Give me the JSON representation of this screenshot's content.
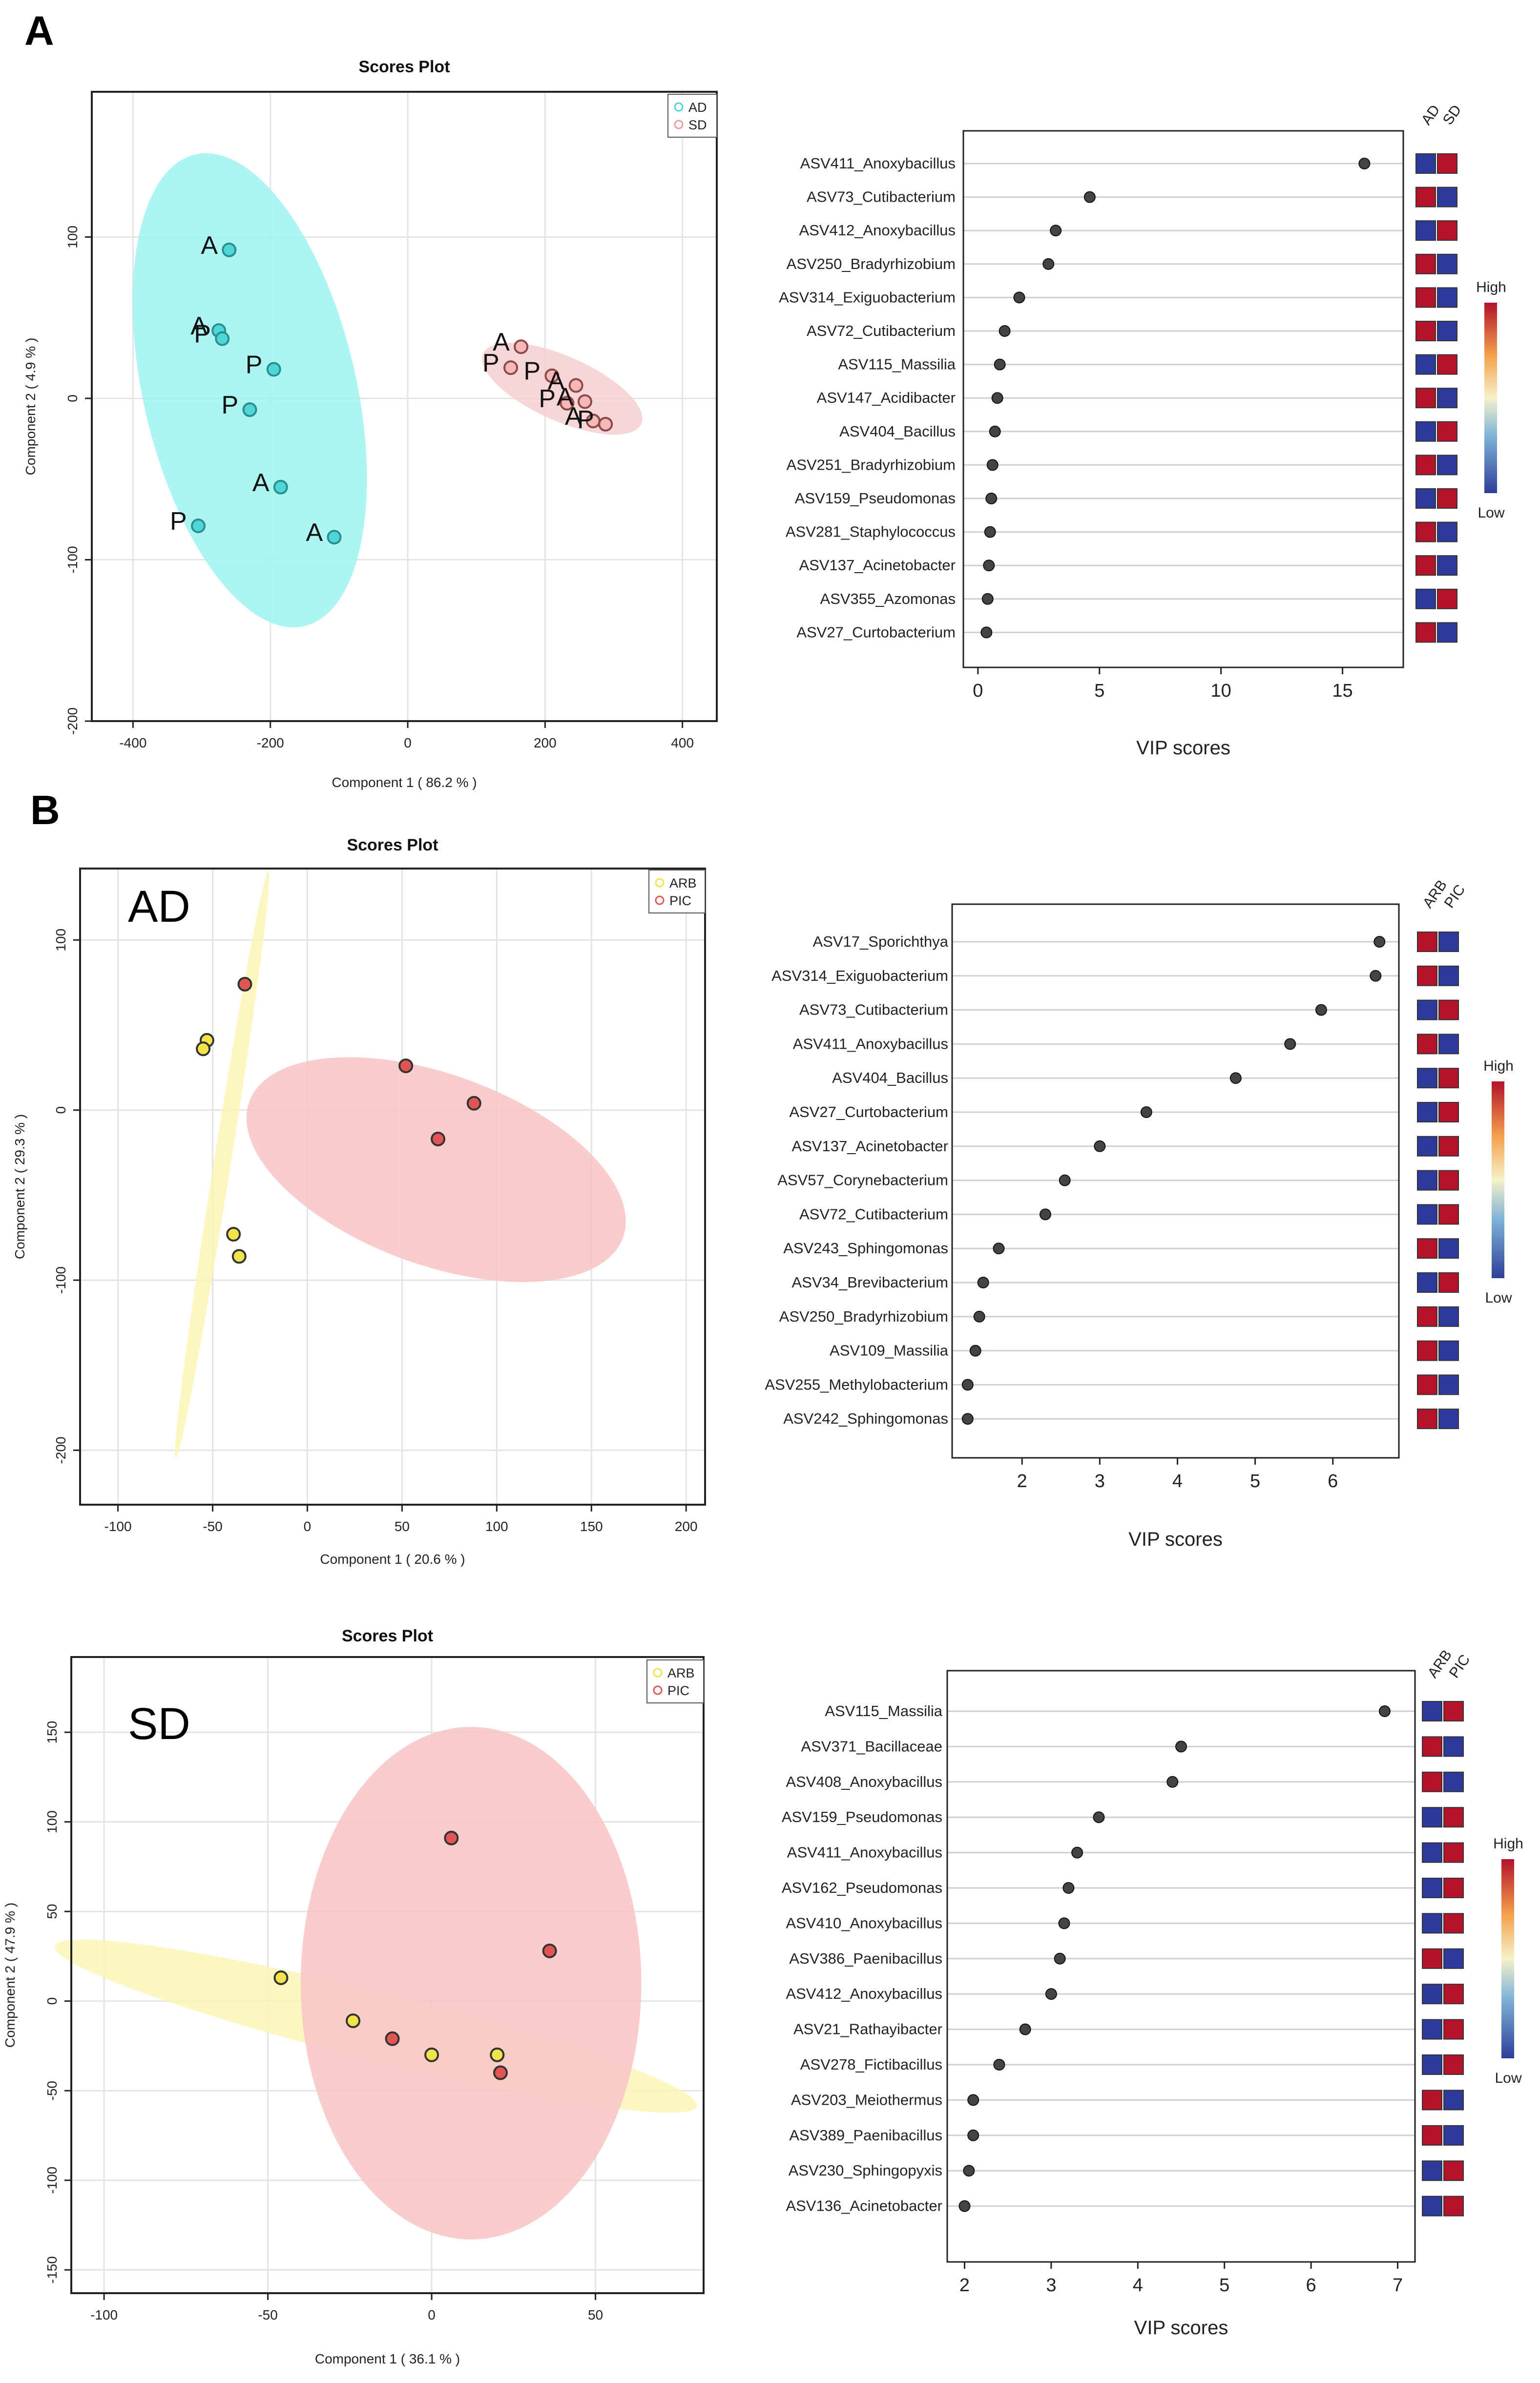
{
  "panel_labels": {
    "a": "A",
    "b": "B"
  },
  "chart_data": [
    {
      "id": "A_scores",
      "type": "scatter",
      "title": "Scores Plot",
      "xlabel": "Component 1 ( 86.2 % )",
      "ylabel": "Component 2 ( 4.9 % )",
      "xlim": [
        -460,
        450
      ],
      "ylim": [
        -200,
        190
      ],
      "xticks": [
        -400,
        -200,
        0,
        200,
        400
      ],
      "yticks": [
        -200,
        -100,
        0,
        100
      ],
      "grid": true,
      "legend_position": "top-right",
      "legend": [
        {
          "name": "AD",
          "color": "#4fd6d6"
        },
        {
          "name": "SD",
          "color": "#f09a9a"
        }
      ],
      "inner_label": "",
      "ellipses": [
        {
          "group": "AD",
          "cx": -230,
          "cy": 5,
          "rx": 155,
          "ry": 150,
          "angle": -13,
          "color": "#9ff3f1"
        },
        {
          "group": "SD",
          "cx": 225,
          "cy": 6,
          "rx": 126,
          "ry": 20,
          "angle": 24,
          "color": "#f6cfd1"
        }
      ],
      "points": [
        {
          "x": -260,
          "y": 92,
          "label": "A",
          "group": "AD"
        },
        {
          "x": -275,
          "y": 42,
          "label": "A",
          "group": "AD"
        },
        {
          "x": -270,
          "y": 37,
          "label": "P",
          "group": "AD"
        },
        {
          "x": -195,
          "y": 18,
          "label": "P",
          "group": "AD"
        },
        {
          "x": -230,
          "y": -7,
          "label": "P",
          "group": "AD"
        },
        {
          "x": -185,
          "y": -55,
          "label": "A",
          "group": "AD"
        },
        {
          "x": -305,
          "y": -79,
          "label": "P",
          "group": "AD"
        },
        {
          "x": -107,
          "y": -86,
          "label": "A",
          "group": "AD"
        },
        {
          "x": 165,
          "y": 32,
          "label": "A",
          "group": "SD"
        },
        {
          "x": 150,
          "y": 19,
          "label": "P",
          "group": "SD"
        },
        {
          "x": 210,
          "y": 14,
          "label": "P",
          "group": "SD"
        },
        {
          "x": 245,
          "y": 8,
          "label": "A",
          "group": "SD"
        },
        {
          "x": 232,
          "y": -3,
          "label": "P",
          "group": "SD"
        },
        {
          "x": 258,
          "y": -2,
          "label": "A",
          "group": "SD"
        },
        {
          "x": 270,
          "y": -14,
          "label": "A",
          "group": "SD"
        },
        {
          "x": 288,
          "y": -16,
          "label": "P",
          "group": "SD"
        }
      ]
    },
    {
      "id": "A_vip",
      "type": "scatter",
      "xlabel": "VIP scores",
      "xlim": [
        -0.6,
        17.5
      ],
      "xticks": [
        0,
        5,
        10,
        15
      ],
      "heat_headers": [
        "AD",
        "SD"
      ],
      "heat_legend": {
        "high": "High",
        "low": "Low"
      },
      "features": [
        "ASV411_Anoxybacillus",
        "ASV73_Cutibacterium",
        "ASV412_Anoxybacillus",
        "ASV250_Bradyrhizobium",
        "ASV314_Exiguobacterium",
        "ASV72_Cutibacterium",
        "ASV115_Massilia",
        "ASV147_Acidibacter",
        "ASV404_Bacillus",
        "ASV251_Bradyrhizobium",
        "ASV159_Pseudomonas",
        "ASV281_Staphylococcus",
        "ASV137_Acinetobacter",
        "ASV355_Azomonas",
        "ASV27_Curtobacterium"
      ],
      "values": [
        15.9,
        4.6,
        3.2,
        2.9,
        1.7,
        1.1,
        0.9,
        0.8,
        0.7,
        0.6,
        0.55,
        0.5,
        0.45,
        0.4,
        0.35
      ],
      "heat": [
        [
          "blue",
          "red"
        ],
        [
          "red",
          "blue"
        ],
        [
          "blue",
          "red"
        ],
        [
          "red",
          "blue"
        ],
        [
          "red",
          "blue"
        ],
        [
          "red",
          "blue"
        ],
        [
          "blue",
          "red"
        ],
        [
          "red",
          "blue"
        ],
        [
          "blue",
          "red"
        ],
        [
          "red",
          "blue"
        ],
        [
          "blue",
          "red"
        ],
        [
          "red",
          "blue"
        ],
        [
          "red",
          "blue"
        ],
        [
          "blue",
          "red"
        ],
        [
          "red",
          "blue"
        ]
      ]
    },
    {
      "id": "B_AD_scores",
      "type": "scatter",
      "title": "Scores Plot",
      "xlabel": "Component 1 ( 20.6 % )",
      "ylabel": "Component 2 ( 29.3 % )",
      "xlim": [
        -120,
        210
      ],
      "ylim": [
        -232,
        142
      ],
      "xticks": [
        -100,
        -50,
        0,
        50,
        100,
        150,
        200
      ],
      "yticks": [
        -200,
        -100,
        0,
        100
      ],
      "grid": true,
      "legend_position": "top-right",
      "legend": [
        {
          "name": "ARB",
          "color": "#f2e34a"
        },
        {
          "name": "PIC",
          "color": "#e25555"
        }
      ],
      "inner_label": "AD",
      "ellipses": [
        {
          "group": "ARB",
          "cx": -45,
          "cy": -32,
          "rx": 157,
          "ry": 5,
          "angle": -81,
          "color": "#fbf6b6"
        },
        {
          "group": "PIC",
          "cx": 68,
          "cy": -35,
          "rx": 105,
          "ry": 56,
          "angle": 20,
          "color": "#f8c4c6"
        }
      ],
      "points": [
        {
          "x": -33,
          "y": 74,
          "label": "",
          "group": "PIC"
        },
        {
          "x": 52,
          "y": 26,
          "label": "",
          "group": "PIC"
        },
        {
          "x": 88,
          "y": 4,
          "label": "",
          "group": "PIC"
        },
        {
          "x": 69,
          "y": -17,
          "label": "",
          "group": "PIC"
        },
        {
          "x": -53,
          "y": 41,
          "label": "",
          "group": "ARB"
        },
        {
          "x": -55,
          "y": 36,
          "label": "",
          "group": "ARB"
        },
        {
          "x": -39,
          "y": -73,
          "label": "",
          "group": "ARB"
        },
        {
          "x": -36,
          "y": -86,
          "label": "",
          "group": "ARB"
        }
      ]
    },
    {
      "id": "B_AD_vip",
      "type": "scatter",
      "xlabel": "VIP scores",
      "xlim": [
        1.1,
        6.85
      ],
      "xticks": [
        2,
        3,
        4,
        5,
        6
      ],
      "heat_headers": [
        "ARB",
        "PIC"
      ],
      "heat_legend": {
        "high": "High",
        "low": "Low"
      },
      "features": [
        "ASV17_Sporichthya",
        "ASV314_Exiguobacterium",
        "ASV73_Cutibacterium",
        "ASV411_Anoxybacillus",
        "ASV404_Bacillus",
        "ASV27_Curtobacterium",
        "ASV137_Acinetobacter",
        "ASV57_Corynebacterium",
        "ASV72_Cutibacterium",
        "ASV243_Sphingomonas",
        "ASV34_Brevibacterium",
        "ASV250_Bradyrhizobium",
        "ASV109_Massilia",
        "ASV255_Methylobacterium",
        "ASV242_Sphingomonas"
      ],
      "values": [
        6.6,
        6.55,
        5.85,
        5.45,
        4.75,
        3.6,
        3.0,
        2.55,
        2.3,
        1.7,
        1.5,
        1.45,
        1.4,
        1.3,
        1.3
      ],
      "heat": [
        [
          "red",
          "blue"
        ],
        [
          "red",
          "blue"
        ],
        [
          "blue",
          "red"
        ],
        [
          "red",
          "blue"
        ],
        [
          "blue",
          "red"
        ],
        [
          "blue",
          "red"
        ],
        [
          "blue",
          "red"
        ],
        [
          "blue",
          "red"
        ],
        [
          "blue",
          "red"
        ],
        [
          "red",
          "blue"
        ],
        [
          "blue",
          "red"
        ],
        [
          "red",
          "blue"
        ],
        [
          "red",
          "blue"
        ],
        [
          "red",
          "blue"
        ],
        [
          "red",
          "blue"
        ]
      ]
    },
    {
      "id": "B_SD_scores",
      "type": "scatter",
      "title": "Scores Plot",
      "xlabel": "Component 1 ( 36.1 % )",
      "ylabel": "Component 2 ( 47.9 % )",
      "xlim": [
        -110,
        83
      ],
      "ylim": [
        -163,
        192
      ],
      "xticks": [
        -100,
        -50,
        0,
        50
      ],
      "yticks": [
        -150,
        -100,
        -50,
        0,
        50,
        100,
        150
      ],
      "grid": true,
      "legend_position": "top-right",
      "legend": [
        {
          "name": "ARB",
          "color": "#f2e34a"
        },
        {
          "name": "PIC",
          "color": "#e25555"
        }
      ],
      "inner_label": "SD",
      "ellipses": [
        {
          "group": "ARB",
          "cx": -17,
          "cy": -14,
          "rx": 101,
          "ry": 19,
          "angle": 14,
          "color": "#fbf6b6"
        },
        {
          "group": "PIC",
          "cx": 12,
          "cy": 10,
          "rx": 52,
          "ry": 143,
          "angle": 0,
          "color": "#f8c4c6"
        }
      ],
      "points": [
        {
          "x": 6,
          "y": 91,
          "label": "",
          "group": "PIC"
        },
        {
          "x": 36,
          "y": 28,
          "label": "",
          "group": "PIC"
        },
        {
          "x": -12,
          "y": -21,
          "label": "",
          "group": "PIC"
        },
        {
          "x": 21,
          "y": -40,
          "label": "",
          "group": "PIC"
        },
        {
          "x": -46,
          "y": 13,
          "label": "",
          "group": "ARB"
        },
        {
          "x": -24,
          "y": -11,
          "label": "",
          "group": "ARB"
        },
        {
          "x": 0,
          "y": -30,
          "label": "",
          "group": "ARB"
        },
        {
          "x": 20,
          "y": -30,
          "label": "",
          "group": "ARB"
        }
      ]
    },
    {
      "id": "B_SD_vip",
      "type": "scatter",
      "xlabel": "VIP scores",
      "xlim": [
        1.8,
        7.2
      ],
      "xticks": [
        2,
        3,
        4,
        5,
        6,
        7
      ],
      "heat_headers": [
        "ARB",
        "PIC"
      ],
      "heat_legend": {
        "high": "High",
        "low": "Low"
      },
      "features": [
        "ASV115_Massilia",
        "ASV371_Bacillaceae",
        "ASV408_Anoxybacillus",
        "ASV159_Pseudomonas",
        "ASV411_Anoxybacillus",
        "ASV162_Pseudomonas",
        "ASV410_Anoxybacillus",
        "ASV386_Paenibacillus",
        "ASV412_Anoxybacillus",
        "ASV21_Rathayibacter",
        "ASV278_Fictibacillus",
        "ASV203_Meiothermus",
        "ASV389_Paenibacillus",
        "ASV230_Sphingopyxis",
        "ASV136_Acinetobacter"
      ],
      "values": [
        6.85,
        4.5,
        4.4,
        3.55,
        3.3,
        3.2,
        3.15,
        3.1,
        3.0,
        2.7,
        2.4,
        2.1,
        2.1,
        2.05,
        2.0
      ],
      "heat": [
        [
          "blue",
          "red"
        ],
        [
          "red",
          "blue"
        ],
        [
          "red",
          "blue"
        ],
        [
          "blue",
          "red"
        ],
        [
          "blue",
          "red"
        ],
        [
          "blue",
          "red"
        ],
        [
          "blue",
          "red"
        ],
        [
          "red",
          "blue"
        ],
        [
          "blue",
          "red"
        ],
        [
          "blue",
          "red"
        ],
        [
          "blue",
          "red"
        ],
        [
          "red",
          "blue"
        ],
        [
          "red",
          "blue"
        ],
        [
          "blue",
          "red"
        ],
        [
          "blue",
          "red"
        ]
      ]
    }
  ]
}
